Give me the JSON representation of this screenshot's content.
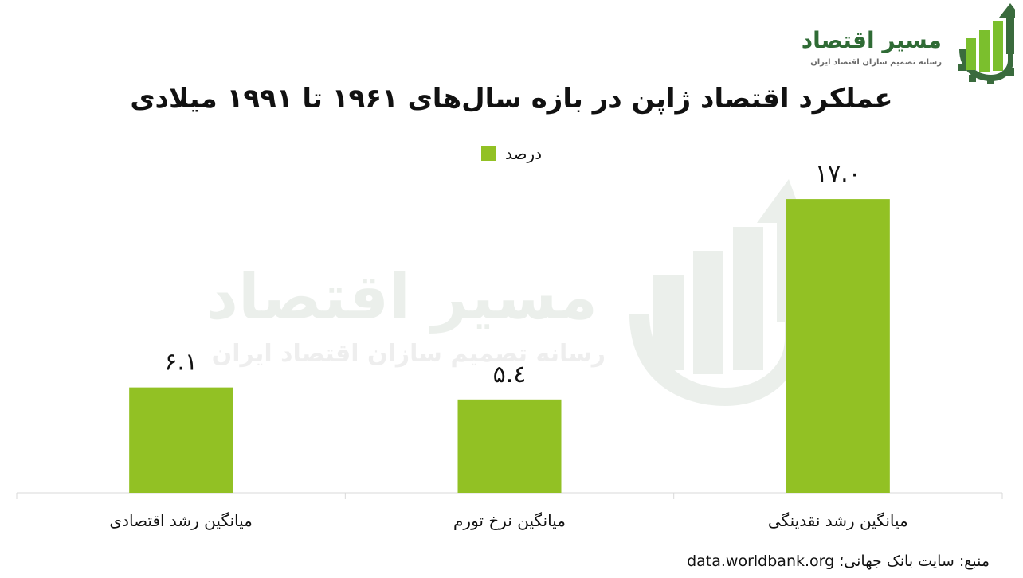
{
  "logo": {
    "title": "مسیر اقتصاد",
    "subtitle": "رسانه تصمیم سازان اقتصاد ایران",
    "icon": "growth-bars-gear-arrow-icon",
    "color_primary": "#3a6b3d",
    "color_accent": "#7bbf2d"
  },
  "watermark": {
    "title": "مسیر اقتصاد",
    "subtitle": "رسانه تصمیم سازان اقتصاد ایران",
    "icon": "growth-bars-gear-arrow-icon"
  },
  "source_text": "منبع: سایت بانک جهانی؛ data.worldbank.org",
  "chart_data": {
    "type": "bar",
    "title": "عملکرد اقتصاد ژاپن در بازه سال‌های ۱۹۶۱ تا ۱۹۹۱ میلادی",
    "categories": [
      "میانگین رشد اقتصادی",
      "میانگین نرخ تورم",
      "میانگین رشد نقدینگی"
    ],
    "series": [
      {
        "name": "درصد",
        "values": [
          6.1,
          5.4,
          17.0
        ],
        "labels": [
          "۶.۱",
          "۵.٤",
          "۱۷.۰"
        ],
        "color": "#92c124"
      }
    ],
    "xlabel": "",
    "ylabel": "",
    "ylim": [
      0,
      20
    ],
    "grid": false,
    "legend": "top-center",
    "axis_color": "#d9d9d9"
  }
}
